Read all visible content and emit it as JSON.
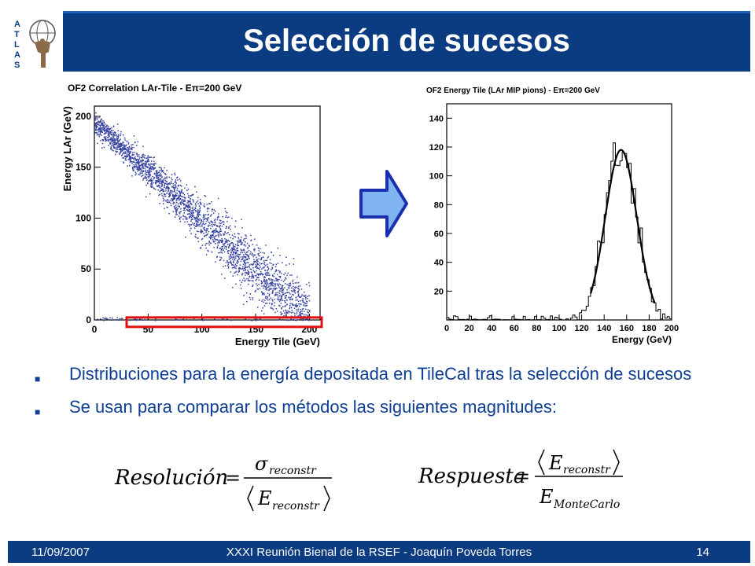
{
  "header": {
    "title": "Selección de sucesos",
    "logo_letters": "ATLAS"
  },
  "colors": {
    "header": "#0b3c82",
    "text": "#0e3f94",
    "scatter": "#3340a0",
    "arrow_fill": "#7fb4f0",
    "arrow_stroke": "#1b2fb0",
    "selection_box": "#e01010"
  },
  "bullets": [
    "Distribuciones para la energía depositada en TileCal tras la selección de sucesos",
    "Se usan para comparar los métodos las siguientes magnitudes:"
  ],
  "formulas": {
    "resolution": {
      "lhs": "Resolución",
      "num": "σ",
      "num_sub": "reconstr",
      "den": "E",
      "den_sub": "reconstr"
    },
    "response": {
      "lhs": "Respuesta",
      "num": "E",
      "num_sub": "reconstr",
      "den": "E",
      "den_sub": "MonteCarlo"
    }
  },
  "footer": {
    "date": "11/09/2007",
    "center": "XXXI Reunión Bienal de la RSEF - Joaquín Poveda Torres",
    "page": "14"
  },
  "chart_data": [
    {
      "type": "scatter",
      "title": "OF2 Correlation LAr-Tile - Eπ=200 GeV",
      "xlabel": "Energy Tile (GeV)",
      "ylabel": "Energy LAr (GeV)",
      "xlim": [
        0,
        210
      ],
      "ylim": [
        0,
        210
      ],
      "xticks": [
        0,
        50,
        100,
        150,
        200
      ],
      "yticks": [
        0,
        50,
        100,
        150,
        200
      ],
      "band": {
        "description": "points along E_LAr ≈ 200 - E_Tile",
        "x_range": [
          0,
          200
        ]
      },
      "selection_box": {
        "x": [
          30,
          210
        ],
        "y": [
          -4,
          4
        ]
      },
      "grid": false
    },
    {
      "type": "bar",
      "title": "OF2 Energy Tile (LAr MIP pions) - Eπ=200 GeV",
      "xlabel": "Energy (GeV)",
      "ylabel": "",
      "xlim": [
        0,
        200
      ],
      "ylim": [
        0,
        150
      ],
      "xticks": [
        0,
        20,
        40,
        60,
        80,
        100,
        120,
        140,
        160,
        180,
        200
      ],
      "yticks": [
        20,
        40,
        60,
        80,
        100,
        120,
        140
      ],
      "fit": {
        "type": "gaussian",
        "mean": 155,
        "sigma": 14,
        "amplitude": 118,
        "x_range": [
          128,
          185
        ]
      },
      "bin_width": 2,
      "grid": false
    }
  ]
}
